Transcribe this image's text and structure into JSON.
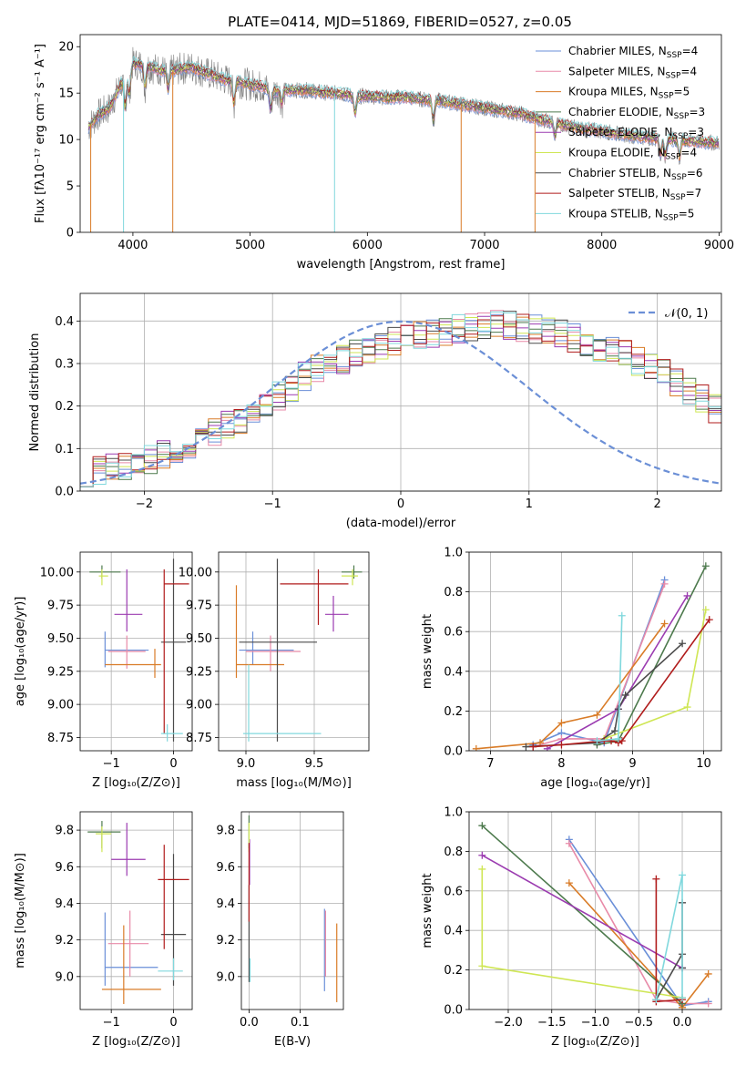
{
  "title": "PLATE=0414, MJD=51869, FIBERID=0527, z=0.05",
  "colors": {
    "chabrier_miles": "#6a8fd8",
    "salpeter_miles": "#e88aa8",
    "kroupa_miles": "#d97c28",
    "chabrier_elodie": "#4d7a4d",
    "salpeter_elodie": "#9b3bb0",
    "kroupa_elodie": "#cfe654",
    "chabrier_stelib": "#4b4b4b",
    "salpeter_stelib": "#b01c1c",
    "kroupa_stelib": "#80d8dd"
  },
  "chart_data": [
    {
      "id": "spectrum",
      "type": "line",
      "xlabel": "wavelength [Angstrom, rest frame]",
      "ylabel": "Flux [fλ10⁻¹⁷ erg cm⁻² s⁻¹ A⁻¹]",
      "xlim": [
        3550,
        9020
      ],
      "ylim": [
        0,
        21.3
      ],
      "xticks": [
        "4000",
        "5000",
        "6000",
        "7000",
        "8000",
        "9000"
      ],
      "yticks": [
        "0",
        "5",
        "10",
        "15",
        "20"
      ],
      "grid": false,
      "legend_position": "top-right",
      "legend": [
        {
          "main": "Chabrier MILES, N",
          "sub": "SSP",
          "tail": "=4"
        },
        {
          "main": "Salpeter MILES, N",
          "sub": "SSP",
          "tail": "=4"
        },
        {
          "main": "Kroupa MILES, N",
          "sub": "SSP",
          "tail": "=5"
        },
        {
          "main": "Chabrier ELODIE, N",
          "sub": "SSP",
          "tail": "=3"
        },
        {
          "main": "Salpeter ELODIE, N",
          "sub": "SSP",
          "tail": "=3"
        },
        {
          "main": "Kroupa ELODIE, N",
          "sub": "SSP",
          "tail": "=4"
        },
        {
          "main": "Chabrier STELIB, N",
          "sub": "SSP",
          "tail": "=6"
        },
        {
          "main": "Salpeter STELIB, N",
          "sub": "SSP",
          "tail": "=7"
        },
        {
          "main": "Kroupa STELIB, N",
          "sub": "SSP",
          "tail": "=5"
        }
      ],
      "continuum": [
        [
          3620,
          11.3
        ],
        [
          3700,
          12.6
        ],
        [
          3800,
          13.4
        ],
        [
          3900,
          16.0
        ],
        [
          4000,
          18.2
        ],
        [
          4100,
          18.0
        ],
        [
          4200,
          17.6
        ],
        [
          4300,
          17.3
        ],
        [
          4400,
          17.6
        ],
        [
          4500,
          17.8
        ],
        [
          4600,
          17.3
        ],
        [
          4700,
          16.8
        ],
        [
          4800,
          16.4
        ],
        [
          4900,
          16.2
        ],
        [
          5000,
          15.9
        ],
        [
          5100,
          15.7
        ],
        [
          5200,
          15.2
        ],
        [
          5300,
          15.3
        ],
        [
          5400,
          15.3
        ],
        [
          5500,
          15.3
        ],
        [
          5600,
          15.1
        ],
        [
          5700,
          15.0
        ],
        [
          5800,
          14.9
        ],
        [
          5900,
          14.6
        ],
        [
          6000,
          14.7
        ],
        [
          6100,
          14.6
        ],
        [
          6200,
          14.5
        ],
        [
          6300,
          14.6
        ],
        [
          6400,
          14.4
        ],
        [
          6500,
          14.3
        ],
        [
          6600,
          14.2
        ],
        [
          6700,
          14.0
        ],
        [
          6800,
          13.8
        ],
        [
          6900,
          13.6
        ],
        [
          7000,
          13.4
        ],
        [
          7100,
          13.2
        ],
        [
          7200,
          13.0
        ],
        [
          7300,
          12.8
        ],
        [
          7400,
          12.4
        ],
        [
          7600,
          11.8
        ],
        [
          7800,
          11.2
        ],
        [
          8000,
          10.9
        ],
        [
          8200,
          10.5
        ],
        [
          8400,
          10.2
        ],
        [
          8600,
          10.0
        ],
        [
          8800,
          9.8
        ],
        [
          9000,
          9.6
        ]
      ],
      "spikes": [
        {
          "x": 3640,
          "y": 0
        },
        {
          "x": 3920,
          "y": 0
        },
        {
          "x": 4340,
          "y": 0
        },
        {
          "x": 5720,
          "y": 0
        },
        {
          "x": 6800,
          "y": 0
        },
        {
          "x": 7430,
          "y": 0
        }
      ]
    },
    {
      "id": "residuals",
      "type": "histogram",
      "xlabel": "(data-model)/error",
      "ylabel": "Normed distribution",
      "xlim": [
        -2.5,
        2.5
      ],
      "ylim": [
        0,
        0.465
      ],
      "xticks": [
        "−2",
        "−1",
        "0",
        "1",
        "2"
      ],
      "yticks": [
        "0.0",
        "0.1",
        "0.2",
        "0.3",
        "0.4"
      ],
      "grid": true,
      "legend_position": "top-right",
      "legend": [
        "𝒩(0, 1)"
      ],
      "bin_width": 0.1,
      "gaussian": {
        "mean": 0,
        "sigma": 1,
        "color": "#6b8fd6"
      },
      "profile": [
        0.045,
        0.05,
        0.055,
        0.06,
        0.07,
        0.075,
        0.085,
        0.1,
        0.11,
        0.125,
        0.14,
        0.155,
        0.17,
        0.19,
        0.205,
        0.225,
        0.245,
        0.27,
        0.29,
        0.3,
        0.31,
        0.325,
        0.335,
        0.345,
        0.355,
        0.36,
        0.365,
        0.37,
        0.375,
        0.38,
        0.385,
        0.39,
        0.395,
        0.39,
        0.385,
        0.38,
        0.375,
        0.37,
        0.36,
        0.35,
        0.34,
        0.33,
        0.32,
        0.305,
        0.29,
        0.275,
        0.255,
        0.235,
        0.215,
        0.195
      ]
    },
    {
      "id": "age_vs_Z",
      "type": "errorbar",
      "xlabel": "Z [log₁₀(Z/Z⊙)]",
      "ylabel": "age  [log₁₀(age/yr)]",
      "xlim": [
        -1.5,
        0.3
      ],
      "ylim": [
        8.65,
        10.15
      ],
      "xticks": [
        "−1",
        "0"
      ],
      "yticks": [
        "8.75",
        "9.00",
        "9.25",
        "9.50",
        "9.75",
        "10.00"
      ],
      "grid": true,
      "points": [
        {
          "c": "chabrier_miles",
          "x": -1.1,
          "xl": -1.1,
          "xh": -0.4,
          "y": 9.41,
          "yl": 9.28,
          "yh": 9.55
        },
        {
          "c": "salpeter_miles",
          "x": -0.75,
          "xl": -1.05,
          "xh": -0.45,
          "y": 9.4,
          "yl": 9.27,
          "yh": 9.52
        },
        {
          "c": "kroupa_miles",
          "x": -0.3,
          "xl": -1.1,
          "xh": -0.2,
          "y": 9.3,
          "yl": 9.2,
          "yh": 9.42
        },
        {
          "c": "chabrier_elodie",
          "x": -1.15,
          "xl": -1.35,
          "xh": -0.85,
          "y": 10.0,
          "yl": 9.95,
          "yh": 10.05
        },
        {
          "c": "salpeter_elodie",
          "x": -0.75,
          "xl": -0.95,
          "xh": -0.5,
          "y": 9.68,
          "yl": 9.55,
          "yh": 10.02
        },
        {
          "c": "kroupa_elodie",
          "x": -1.15,
          "xl": -1.2,
          "xh": -1.05,
          "y": 9.97,
          "yl": 9.9,
          "yh": 10.02
        },
        {
          "c": "chabrier_stelib",
          "x": 0.0,
          "xl": -0.2,
          "xh": 0.2,
          "y": 9.47,
          "yl": 8.72,
          "yh": 10.1
        },
        {
          "c": "salpeter_stelib",
          "x": -0.15,
          "xl": -0.15,
          "xh": 0.25,
          "y": 9.91,
          "yl": 8.78,
          "yh": 10.02
        },
        {
          "c": "kroupa_stelib",
          "x": -0.1,
          "xl": -0.2,
          "xh": 0.15,
          "y": 8.78,
          "yl": 8.72,
          "yh": 8.85
        }
      ]
    },
    {
      "id": "age_vs_mass",
      "type": "errorbar",
      "xlabel": "mass [log₁₀(M/M⊙)]",
      "ylabel": "",
      "xlim": [
        8.8,
        9.9
      ],
      "ylim": [
        8.65,
        10.15
      ],
      "xticks": [
        "9.0",
        "9.5"
      ],
      "yticks": [
        "8.75",
        "9.00",
        "9.25",
        "9.50",
        "9.75",
        "10.00"
      ],
      "grid": true,
      "points": [
        {
          "c": "chabrier_miles",
          "x": 9.05,
          "xl": 8.95,
          "xh": 9.35,
          "y": 9.41,
          "yl": 9.3,
          "yh": 9.55
        },
        {
          "c": "salpeter_miles",
          "x": 9.18,
          "xl": 9.0,
          "xh": 9.4,
          "y": 9.4,
          "yl": 9.25,
          "yh": 9.52
        },
        {
          "c": "kroupa_miles",
          "x": 8.93,
          "xl": 8.93,
          "xh": 9.28,
          "y": 9.3,
          "yl": 9.2,
          "yh": 9.9
        },
        {
          "c": "chabrier_elodie",
          "x": 9.79,
          "xl": 9.7,
          "xh": 9.85,
          "y": 10.0,
          "yl": 9.95,
          "yh": 10.05
        },
        {
          "c": "salpeter_elodie",
          "x": 9.64,
          "xl": 9.58,
          "xh": 9.75,
          "y": 9.68,
          "yl": 9.55,
          "yh": 9.82
        },
        {
          "c": "kroupa_elodie",
          "x": 9.78,
          "xl": 9.7,
          "xh": 9.82,
          "y": 9.97,
          "yl": 9.9,
          "yh": 10.02
        },
        {
          "c": "chabrier_stelib",
          "x": 9.23,
          "xl": 8.95,
          "xh": 9.52,
          "y": 9.47,
          "yl": 8.72,
          "yh": 10.1
        },
        {
          "c": "salpeter_stelib",
          "x": 9.53,
          "xl": 9.25,
          "xh": 9.75,
          "y": 9.91,
          "yl": 9.6,
          "yh": 10.02
        },
        {
          "c": "kroupa_stelib",
          "x": 9.02,
          "xl": 8.98,
          "xh": 9.55,
          "y": 8.78,
          "yl": 8.72,
          "yh": 9.3
        }
      ]
    },
    {
      "id": "massweight_vs_age",
      "type": "line",
      "xlabel": "age  [log₁₀(age/yr)]",
      "ylabel": "mass weight",
      "xlim": [
        6.7,
        10.25
      ],
      "ylim": [
        0,
        1
      ],
      "xticks": [
        "7",
        "8",
        "9",
        "10"
      ],
      "yticks": [
        "0.0",
        "0.2",
        "0.4",
        "0.6",
        "0.8",
        "1.0"
      ],
      "grid": true,
      "series": [
        {
          "c": "chabrier_miles",
          "x": [
            7.6,
            8.0,
            8.6,
            9.45
          ],
          "y": [
            0.03,
            0.09,
            0.04,
            0.86
          ]
        },
        {
          "c": "salpeter_miles",
          "x": [
            7.6,
            8.0,
            8.6,
            9.45
          ],
          "y": [
            0.02,
            0.06,
            0.06,
            0.84
          ]
        },
        {
          "c": "kroupa_miles",
          "x": [
            6.8,
            7.7,
            8.0,
            8.5,
            9.45
          ],
          "y": [
            0.01,
            0.04,
            0.14,
            0.18,
            0.64
          ]
        },
        {
          "c": "chabrier_elodie",
          "x": [
            8.5,
            8.8,
            10.03
          ],
          "y": [
            0.03,
            0.05,
            0.93
          ]
        },
        {
          "c": "salpeter_elodie",
          "x": [
            7.8,
            8.8,
            9.77
          ],
          "y": [
            0.01,
            0.21,
            0.78
          ]
        },
        {
          "c": "kroupa_elodie",
          "x": [
            8.6,
            9.77,
            10.03
          ],
          "y": [
            0.06,
            0.22,
            0.71
          ]
        },
        {
          "c": "chabrier_stelib",
          "x": [
            7.5,
            8.5,
            8.75,
            8.8,
            8.9,
            9.7
          ],
          "y": [
            0.02,
            0.04,
            0.1,
            0.21,
            0.28,
            0.54
          ]
        },
        {
          "c": "salpeter_stelib",
          "x": [
            7.6,
            8.0,
            8.6,
            8.7,
            8.8,
            8.85,
            10.08
          ],
          "y": [
            0.02,
            0.03,
            0.05,
            0.05,
            0.04,
            0.05,
            0.66
          ]
        },
        {
          "c": "kroupa_stelib",
          "x": [
            8.5,
            8.8,
            8.85
          ],
          "y": [
            0.05,
            0.06,
            0.68
          ]
        }
      ]
    },
    {
      "id": "mass_vs_Z",
      "type": "errorbar",
      "xlabel": "Z [log₁₀(Z/Z⊙)]",
      "ylabel": "mass [log₁₀(M/M⊙)]",
      "xlim": [
        -1.5,
        0.3
      ],
      "ylim": [
        8.82,
        9.9
      ],
      "xticks": [
        "−1",
        "0"
      ],
      "yticks": [
        "9.0",
        "9.2",
        "9.4",
        "9.6",
        "9.8"
      ],
      "grid": true,
      "points": [
        {
          "c": "chabrier_miles",
          "x": -1.1,
          "xl": -1.1,
          "xh": -0.25,
          "y": 9.05,
          "yl": 8.95,
          "yh": 9.35
        },
        {
          "c": "salpeter_miles",
          "x": -0.7,
          "xl": -1.05,
          "xh": -0.4,
          "y": 9.18,
          "yl": 9.0,
          "yh": 9.36
        },
        {
          "c": "kroupa_miles",
          "x": -0.8,
          "xl": -1.15,
          "xh": -0.2,
          "y": 8.93,
          "yl": 8.85,
          "yh": 9.28
        },
        {
          "c": "chabrier_elodie",
          "x": -1.15,
          "xl": -1.38,
          "xh": -0.85,
          "y": 9.79,
          "yl": 9.7,
          "yh": 9.85
        },
        {
          "c": "salpeter_elodie",
          "x": -0.75,
          "xl": -1.0,
          "xh": -0.45,
          "y": 9.64,
          "yl": 9.55,
          "yh": 9.84
        },
        {
          "c": "kroupa_elodie",
          "x": -1.15,
          "xl": -1.25,
          "xh": -1.0,
          "y": 9.78,
          "yl": 9.68,
          "yh": 9.82
        },
        {
          "c": "chabrier_stelib",
          "x": 0.0,
          "xl": -0.2,
          "xh": 0.2,
          "y": 9.23,
          "yl": 8.95,
          "yh": 9.67
        },
        {
          "c": "salpeter_stelib",
          "x": -0.15,
          "xl": -0.25,
          "xh": 0.25,
          "y": 9.53,
          "yl": 9.15,
          "yh": 9.72
        },
        {
          "c": "kroupa_stelib",
          "x": 0.0,
          "xl": -0.25,
          "xh": 0.15,
          "y": 9.03,
          "yl": 8.98,
          "yh": 9.1
        }
      ]
    },
    {
      "id": "mass_vs_ebv",
      "type": "errorbar",
      "xlabel": "E(B-V)",
      "ylabel": "",
      "xlim": [
        -0.015,
        0.185
      ],
      "ylim": [
        8.82,
        9.9
      ],
      "xticks": [
        "0.0",
        "0.1"
      ],
      "yticks": [
        "9.0",
        "9.2",
        "9.4",
        "9.6",
        "9.8"
      ],
      "grid": true,
      "points": [
        {
          "c": "chabrier_miles",
          "x": 0.148,
          "xl": 0.148,
          "xh": 0.148,
          "y": 9.2,
          "yl": 8.92,
          "yh": 9.37
        },
        {
          "c": "salpeter_miles",
          "x": 0.15,
          "xl": 0.15,
          "xh": 0.15,
          "y": 9.2,
          "yl": 9.0,
          "yh": 9.36
        },
        {
          "c": "kroupa_miles",
          "x": 0.172,
          "xl": 0.172,
          "xh": 0.172,
          "y": 9.05,
          "yl": 8.86,
          "yh": 9.29
        },
        {
          "c": "chabrier_elodie",
          "x": 0.0,
          "xl": 0.0,
          "xh": 0.0,
          "y": 9.8,
          "yl": 9.7,
          "yh": 9.88
        },
        {
          "c": "salpeter_elodie",
          "x": 0.001,
          "xl": 0.001,
          "xh": 0.001,
          "y": 9.6,
          "yl": 9.5,
          "yh": 9.75
        },
        {
          "c": "kroupa_elodie",
          "x": 0.0,
          "xl": 0.0,
          "xh": 0.0,
          "y": 9.78,
          "yl": 9.68,
          "yh": 9.84
        },
        {
          "c": "chabrier_stelib",
          "x": 0.0,
          "xl": 0.0,
          "xh": 0.0,
          "y": 9.23,
          "yl": 8.97,
          "yh": 9.5
        },
        {
          "c": "salpeter_stelib",
          "x": 0.0,
          "xl": 0.0,
          "xh": 0.0,
          "y": 9.5,
          "yl": 9.3,
          "yh": 9.73
        },
        {
          "c": "kroupa_stelib",
          "x": 0.002,
          "xl": 0.002,
          "xh": 0.002,
          "y": 9.03,
          "yl": 8.97,
          "yh": 9.1
        }
      ]
    },
    {
      "id": "massweight_vs_Z",
      "type": "line",
      "xlabel": "Z [log₁₀(Z/Z⊙)]",
      "ylabel": "mass weight",
      "xlim": [
        -2.45,
        0.45
      ],
      "ylim": [
        0,
        1
      ],
      "xticks": [
        "−2.0",
        "−1.5",
        "−1.0",
        "−0.5",
        "0.0"
      ],
      "yticks": [
        "0.0",
        "0.2",
        "0.4",
        "0.6",
        "0.8",
        "1.0"
      ],
      "grid": true,
      "series": [
        {
          "c": "chabrier_miles",
          "x": [
            -1.3,
            0.0,
            0.3
          ],
          "y": [
            0.86,
            0.02,
            0.04
          ]
        },
        {
          "c": "salpeter_miles",
          "x": [
            -1.3,
            -0.3,
            0.0,
            0.3
          ],
          "y": [
            0.84,
            0.05,
            0.03,
            0.03
          ]
        },
        {
          "c": "kroupa_miles",
          "x": [
            -1.3,
            0.0,
            0.3
          ],
          "y": [
            0.64,
            0.01,
            0.18
          ]
        },
        {
          "c": "chabrier_elodie",
          "x": [
            -2.3,
            0.0
          ],
          "y": [
            0.93,
            0.03
          ]
        },
        {
          "c": "salpeter_elodie",
          "x": [
            -2.3,
            0.0
          ],
          "y": [
            0.78,
            0.21
          ]
        },
        {
          "c": "kroupa_elodie",
          "x": [
            -2.3,
            -2.3,
            0.0
          ],
          "y": [
            0.71,
            0.22,
            0.06
          ]
        },
        {
          "c": "chabrier_stelib",
          "x": [
            -0.3,
            0.0,
            0.0,
            0.0
          ],
          "y": [
            0.05,
            0.28,
            0.54,
            0.21
          ]
        },
        {
          "c": "salpeter_stelib",
          "x": [
            -0.3,
            -0.3,
            0.0
          ],
          "y": [
            0.66,
            0.04,
            0.05
          ]
        },
        {
          "c": "kroupa_stelib",
          "x": [
            -0.3,
            0.0,
            0.0
          ],
          "y": [
            0.05,
            0.68,
            0.06
          ]
        }
      ]
    }
  ]
}
